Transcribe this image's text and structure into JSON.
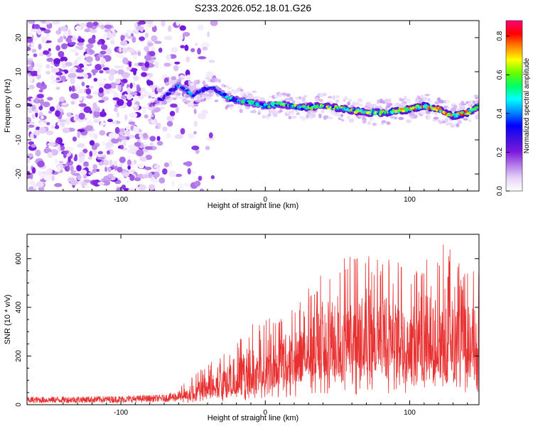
{
  "title": "S233.2026.052.18.01.G26",
  "chart_data": [
    {
      "type": "heatmap",
      "title": "S233.2026.052.18.01.G26",
      "xlabel": "Height of straight line (km)",
      "ylabel": "Frequency (Hz)",
      "xlim": [
        -165,
        148
      ],
      "ylim": [
        -25,
        25
      ],
      "xticks": [
        -100,
        0,
        100
      ],
      "xtick_labels": [
        "-100",
        "0",
        "100"
      ],
      "yticks": [
        -20,
        -10,
        0,
        10,
        20
      ],
      "ytick_labels": [
        "-20",
        "-10",
        "0",
        "10",
        "20"
      ],
      "colorbar": {
        "label": "Normalized spectral amplitude",
        "range": [
          0.0,
          0.88
        ],
        "ticks": [
          "0.0",
          "0.2",
          "0.4",
          "0.6",
          "0.8"
        ],
        "tick_values": [
          0.0,
          0.2,
          0.4,
          0.6,
          0.8
        ],
        "colors": [
          "#ffffff",
          "#e6d2f8",
          "#b27ae8",
          "#7a18e0",
          "#4010e0",
          "#0000ff",
          "#0088ff",
          "#00ffff",
          "#00ff66",
          "#66ff00",
          "#ffff00",
          "#ff8800",
          "#ff0000",
          "#ff0077"
        ]
      },
      "ridge": {
        "description": "dominant frequency ridge vs. height",
        "x": [
          -80,
          -70,
          -60,
          -50,
          -42,
          -35,
          -25,
          -10,
          0,
          10,
          25,
          40,
          55,
          70,
          85,
          100,
          110,
          120,
          130,
          140,
          148
        ],
        "freq": [
          0,
          2.5,
          6,
          3,
          5,
          5,
          2,
          1,
          0,
          0.5,
          -0.5,
          0,
          -1,
          -2,
          -2,
          -1,
          0,
          -1,
          -3,
          -2,
          0
        ],
        "amplitude": [
          0.15,
          0.3,
          0.4,
          0.4,
          0.3,
          0.3,
          0.45,
          0.5,
          0.5,
          0.55,
          0.55,
          0.6,
          0.6,
          0.6,
          0.65,
          0.7,
          0.75,
          0.7,
          0.7,
          0.75,
          0.5
        ]
      }
    },
    {
      "type": "line",
      "xlabel": "Height of straight line (km)",
      "ylabel": "SNR (10 * v/v)",
      "xlim": [
        -165,
        148
      ],
      "ylim": [
        0,
        700
      ],
      "xticks": [
        -100,
        0,
        100
      ],
      "xtick_labels": [
        "-100",
        "0",
        "100"
      ],
      "yticks": [
        0,
        200,
        400,
        600
      ],
      "ytick_labels": [
        "0",
        "200",
        "400",
        "600"
      ],
      "series": [
        {
          "name": "SNR",
          "color": "#e83030",
          "envelope_x": [
            -165,
            -100,
            -70,
            -55,
            -45,
            -38,
            -30,
            -20,
            -10,
            0,
            10,
            20,
            30,
            40,
            50,
            60,
            70,
            80,
            90,
            100,
            110,
            120,
            125,
            130,
            140,
            148
          ],
          "envelope_max": [
            45,
            50,
            55,
            90,
            150,
            175,
            200,
            260,
            330,
            360,
            380,
            420,
            500,
            560,
            600,
            610,
            620,
            610,
            600,
            560,
            600,
            620,
            690,
            600,
            560,
            600
          ],
          "envelope_base": [
            15,
            18,
            22,
            30,
            45,
            60,
            55,
            70,
            90,
            110,
            120,
            130,
            150,
            170,
            180,
            190,
            200,
            200,
            200,
            200,
            190,
            190,
            190,
            190,
            190,
            190
          ]
        }
      ]
    }
  ]
}
